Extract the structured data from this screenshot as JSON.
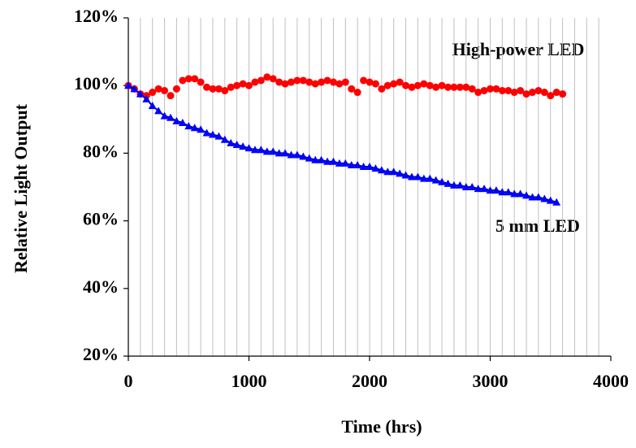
{
  "chart_data": {
    "type": "scatter",
    "x_label": "Time (hrs)",
    "y_label": "Relative Light Output",
    "xlim": [
      0,
      4000
    ],
    "xticks": [
      0,
      1000,
      2000,
      3000,
      4000
    ],
    "ylim": [
      20,
      120
    ],
    "yticks": [
      {
        "value": 20,
        "label": "20%"
      },
      {
        "value": 40,
        "label": "40%"
      },
      {
        "value": 60,
        "label": "60%"
      },
      {
        "value": 80,
        "label": "80%"
      },
      {
        "value": 100,
        "label": "100%"
      },
      {
        "value": 120,
        "label": "120%"
      }
    ],
    "xgrid": [
      100,
      200,
      300,
      400,
      500,
      600,
      700,
      800,
      900,
      1000,
      1100,
      1200,
      1300,
      1400,
      1500,
      1600,
      1700,
      1800,
      1900,
      2000,
      2100,
      2200,
      2300,
      2400,
      2500,
      2600,
      2700,
      2800,
      2900,
      3000,
      3100,
      3200,
      3300,
      3400,
      3500,
      3600,
      3700,
      3800,
      3900
    ],
    "grid": true,
    "x": [
      0,
      50,
      100,
      150,
      200,
      250,
      300,
      350,
      400,
      450,
      500,
      550,
      600,
      650,
      700,
      750,
      800,
      850,
      900,
      950,
      1000,
      1050,
      1100,
      1150,
      1200,
      1250,
      1300,
      1350,
      1400,
      1450,
      1500,
      1550,
      1600,
      1650,
      1700,
      1750,
      1800,
      1850,
      1900,
      1950,
      2000,
      2050,
      2100,
      2150,
      2200,
      2250,
      2300,
      2350,
      2400,
      2450,
      2500,
      2550,
      2600,
      2650,
      2700,
      2750,
      2800,
      2850,
      2900,
      2950,
      3000,
      3050,
      3100,
      3150,
      3200,
      3250,
      3300,
      3350,
      3400,
      3450,
      3500,
      3550,
      3600
    ],
    "series": [
      {
        "name": "High-power LED",
        "color": "#ff0000",
        "marker": "circle",
        "values": [
          100,
          99,
          97.5,
          97,
          98,
          99,
          98.5,
          97,
          99,
          101.5,
          102,
          102,
          101,
          99.5,
          99,
          99,
          98.5,
          99.5,
          100,
          100.5,
          100,
          101,
          101.5,
          102.5,
          102,
          101,
          100.5,
          101,
          101.5,
          101.5,
          101,
          100.5,
          101,
          101.5,
          101,
          100.5,
          101,
          99,
          98,
          101.5,
          101,
          100.5,
          99,
          100,
          100.5,
          101,
          100,
          99.5,
          100,
          100.5,
          100,
          99.5,
          100,
          99.5,
          99.5,
          99.5,
          99.5,
          99,
          98,
          98.5,
          99,
          99,
          98.5,
          98.5,
          98,
          98.5,
          97.5,
          98,
          98.5,
          98,
          97,
          98,
          97.5
        ]
      },
      {
        "name": "5 mm LED",
        "color": "#0000ff",
        "line_color": "#000080",
        "marker": "triangle",
        "values": [
          100,
          99,
          97.5,
          96,
          94,
          92.5,
          91,
          90.5,
          89.5,
          89,
          88,
          87.5,
          87,
          86,
          85.5,
          85,
          84,
          83,
          82.5,
          82,
          81.5,
          81,
          81,
          80.5,
          80.5,
          80,
          80,
          79.5,
          79.5,
          79,
          78.5,
          78,
          78,
          77.5,
          77.5,
          77,
          77,
          76.5,
          76.5,
          76,
          76,
          75.5,
          75,
          74.5,
          74.5,
          74,
          73.5,
          73,
          73,
          72.5,
          72.5,
          72,
          71.5,
          71,
          70.5,
          70.5,
          70,
          70,
          69.5,
          69.5,
          69,
          69,
          68.5,
          68.5,
          68,
          68,
          67.5,
          67,
          67,
          66.5,
          66,
          65.5,
          null
        ]
      }
    ]
  }
}
